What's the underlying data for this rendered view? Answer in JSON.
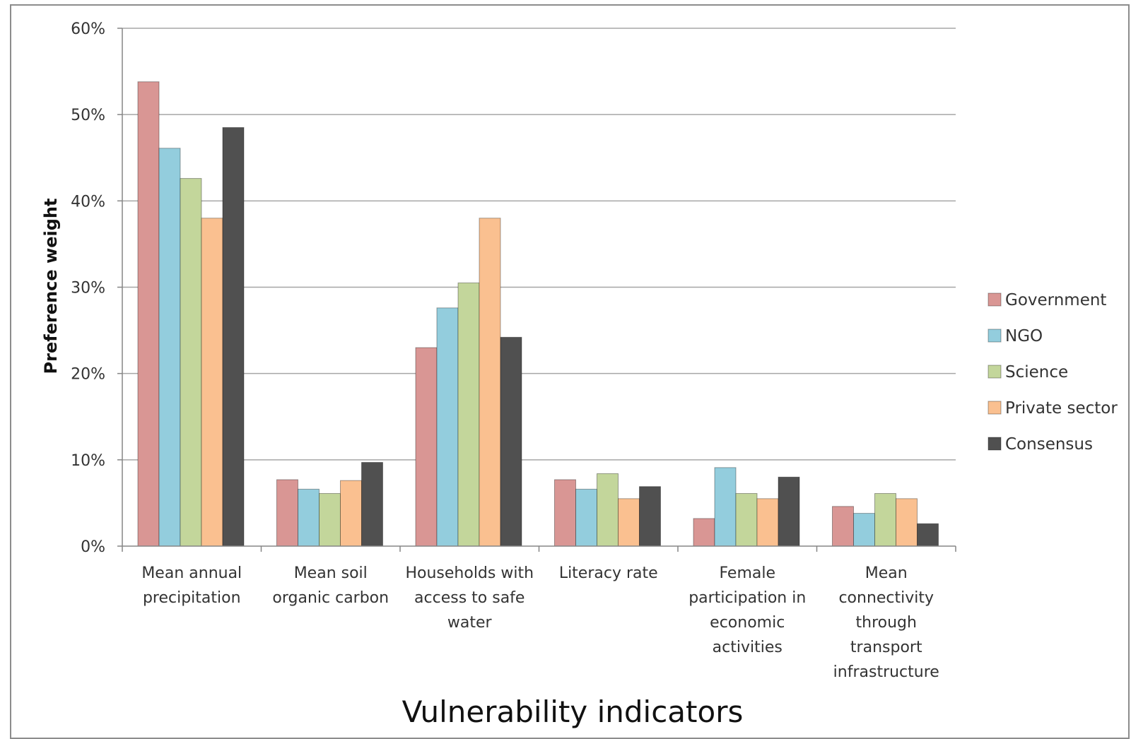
{
  "chart_data": {
    "type": "bar",
    "xlabel": "Vulnerability indicators",
    "ylabel": "Preference weight",
    "ylim": [
      0,
      60
    ],
    "yticks": [
      "0%",
      "10%",
      "20%",
      "30%",
      "40%",
      "50%",
      "60%"
    ],
    "ytick_values": [
      0,
      10,
      20,
      30,
      40,
      50,
      60
    ],
    "grid": true,
    "legend_position": "right",
    "categories": [
      [
        "Mean annual",
        "precipitation"
      ],
      [
        "Mean soil",
        "organic carbon"
      ],
      [
        "Households with",
        "access to safe",
        "water"
      ],
      [
        "Literacy rate"
      ],
      [
        "Female",
        "participation in",
        "economic",
        "activities"
      ],
      [
        "Mean",
        "connectivity",
        "through",
        "transport",
        "infrastructure"
      ]
    ],
    "series": [
      {
        "name": "Government",
        "color": "#d99694",
        "values": [
          53.8,
          7.7,
          23.0,
          7.7,
          3.2,
          4.6
        ]
      },
      {
        "name": "NGO",
        "color": "#93cddd",
        "values": [
          46.1,
          6.6,
          27.6,
          6.6,
          9.1,
          3.8
        ]
      },
      {
        "name": "Science",
        "color": "#c3d69b",
        "values": [
          42.6,
          6.1,
          30.5,
          8.4,
          6.1,
          6.1
        ]
      },
      {
        "name": "Private sector",
        "color": "#fac090",
        "values": [
          38.0,
          7.6,
          38.0,
          5.5,
          5.5,
          5.5
        ]
      },
      {
        "name": "Consensus",
        "color": "#505050",
        "values": [
          48.5,
          9.7,
          24.2,
          6.9,
          8.0,
          2.6
        ]
      }
    ]
  }
}
